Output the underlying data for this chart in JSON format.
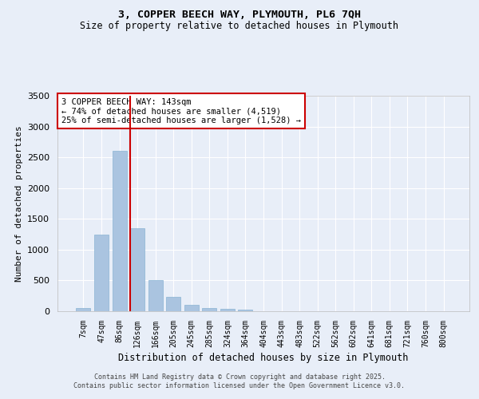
{
  "title_line1": "3, COPPER BEECH WAY, PLYMOUTH, PL6 7QH",
  "title_line2": "Size of property relative to detached houses in Plymouth",
  "xlabel": "Distribution of detached houses by size in Plymouth",
  "ylabel": "Number of detached properties",
  "categories": [
    "7sqm",
    "47sqm",
    "86sqm",
    "126sqm",
    "166sqm",
    "205sqm",
    "245sqm",
    "285sqm",
    "324sqm",
    "364sqm",
    "404sqm",
    "443sqm",
    "483sqm",
    "522sqm",
    "562sqm",
    "602sqm",
    "641sqm",
    "681sqm",
    "721sqm",
    "760sqm",
    "800sqm"
  ],
  "values": [
    50,
    1250,
    2600,
    1350,
    500,
    235,
    110,
    55,
    35,
    25,
    0,
    0,
    0,
    0,
    0,
    0,
    0,
    0,
    0,
    0,
    0
  ],
  "bar_color": "#aac4e0",
  "bar_edge_color": "#8ab4d4",
  "background_color": "#e8eef8",
  "grid_color": "#ffffff",
  "vline_color": "#cc0000",
  "annotation_text": "3 COPPER BEECH WAY: 143sqm\n← 74% of detached houses are smaller (4,519)\n25% of semi-detached houses are larger (1,528) →",
  "annotation_box_color": "#ffffff",
  "annotation_box_edge_color": "#cc0000",
  "ylim": [
    0,
    3500
  ],
  "yticks": [
    0,
    500,
    1000,
    1500,
    2000,
    2500,
    3000,
    3500
  ],
  "vline_x_index": 3,
  "footer_line1": "Contains HM Land Registry data © Crown copyright and database right 2025.",
  "footer_line2": "Contains public sector information licensed under the Open Government Licence v3.0."
}
